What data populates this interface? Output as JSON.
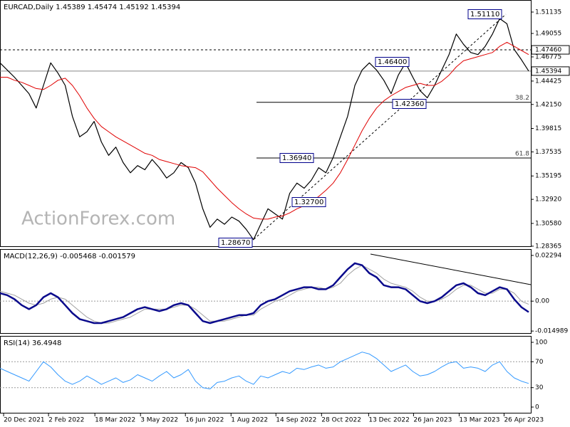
{
  "chart_data": [
    {
      "type": "line",
      "title": "EURCAD,Daily  1.45389 1.45474 1.45192 1.45394",
      "watermark": "ActionForex.com",
      "xlim": [
        0,
        73
      ],
      "ylim": [
        1.2836,
        1.5217
      ],
      "yticks": [
        1.51135,
        1.49055,
        1.46775,
        1.44425,
        {
          "value": 1.4215,
          "label": "1.42150"
        },
        1.39815,
        1.37535,
        1.35195,
        {
          "value": 1.3292,
          "label": "1.32920"
        },
        {
          "value": 1.3058,
          "label": "1.30580"
        },
        1.28365
      ],
      "levels": [
        {
          "value": 1.4746,
          "label": "1.47460",
          "style": "dashed"
        },
        {
          "value": 1.45394,
          "label": "1.45394",
          "style": "solid"
        }
      ],
      "fib": [
        {
          "value": 1.4236,
          "label": "38.2"
        },
        {
          "value": 1.3694,
          "label": "61.8"
        }
      ],
      "annotations": [
        {
          "value": 1.5111,
          "label": "1.51110"
        },
        {
          "value": 1.464,
          "label": "1.46400"
        },
        {
          "value": 1.4236,
          "label": "1.42360"
        },
        {
          "value": 1.3694,
          "label": "1.36940"
        },
        {
          "value": 1.327,
          "label": "1.32700"
        },
        {
          "value": 1.2867,
          "label": "1.28670"
        }
      ],
      "series": [
        {
          "name": "close",
          "color": "#000000",
          "width": 1.2,
          "values": [
            1.462,
            1.455,
            1.448,
            1.44,
            1.432,
            1.418,
            1.44,
            1.462,
            1.452,
            1.44,
            1.41,
            1.39,
            1.395,
            1.405,
            1.385,
            1.372,
            1.38,
            1.365,
            1.355,
            1.362,
            1.358,
            1.368,
            1.36,
            1.35,
            1.355,
            1.365,
            1.36,
            1.345,
            1.32,
            1.302,
            1.31,
            1.305,
            1.312,
            1.308,
            1.3,
            1.29,
            1.305,
            1.32,
            1.315,
            1.31,
            1.335,
            1.345,
            1.34,
            1.348,
            1.36,
            1.355,
            1.37,
            1.39,
            1.41,
            1.44,
            1.455,
            1.462,
            1.455,
            1.445,
            1.432,
            1.45,
            1.462,
            1.448,
            1.435,
            1.428,
            1.44,
            1.455,
            1.47,
            1.49,
            1.48,
            1.472,
            1.47,
            1.478,
            1.49,
            1.505,
            1.5,
            1.475,
            1.465,
            1.454
          ]
        },
        {
          "name": "ma",
          "color": "#e00000",
          "width": 1,
          "values": [
            1.448,
            1.448,
            1.445,
            1.443,
            1.44,
            1.437,
            1.436,
            1.44,
            1.445,
            1.447,
            1.44,
            1.43,
            1.418,
            1.408,
            1.4,
            1.395,
            1.39,
            1.386,
            1.382,
            1.378,
            1.374,
            1.372,
            1.368,
            1.366,
            1.364,
            1.362,
            1.361,
            1.36,
            1.356,
            1.348,
            1.34,
            1.333,
            1.326,
            1.32,
            1.315,
            1.311,
            1.31,
            1.31,
            1.312,
            1.313,
            1.316,
            1.32,
            1.323,
            1.327,
            1.332,
            1.338,
            1.345,
            1.355,
            1.368,
            1.382,
            1.396,
            1.408,
            1.418,
            1.425,
            1.43,
            1.434,
            1.438,
            1.44,
            1.442,
            1.44,
            1.44,
            1.444,
            1.45,
            1.458,
            1.464,
            1.466,
            1.468,
            1.47,
            1.472,
            1.478,
            1.482,
            1.478,
            1.474,
            1.47
          ]
        }
      ]
    },
    {
      "type": "line",
      "title": "MACD(12,26,9) -0.005468 -0.001579",
      "xlim": [
        0,
        73
      ],
      "ylim": [
        -0.016,
        0.0254
      ],
      "yticks": [
        0.02294,
        {
          "value": 0,
          "label": "0.00"
        },
        -0.014989
      ],
      "dotted_levels": [
        0
      ],
      "series": [
        {
          "name": "signal",
          "color": "#a0a0a0",
          "width": 1,
          "values": [
            0.005,
            0.004,
            0.003,
            0.001,
            -0.001,
            -0.002,
            -0.001,
            0.001,
            0.002,
            0.001,
            -0.002,
            -0.005,
            -0.008,
            -0.01,
            -0.011,
            -0.011,
            -0.01,
            -0.009,
            -0.008,
            -0.006,
            -0.004,
            -0.004,
            -0.004,
            -0.004,
            -0.003,
            -0.002,
            -0.002,
            -0.004,
            -0.007,
            -0.01,
            -0.01,
            -0.01,
            -0.009,
            -0.008,
            -0.007,
            -0.007,
            -0.004,
            -0.002,
            0.0,
            0.001,
            0.003,
            0.005,
            0.006,
            0.007,
            0.007,
            0.006,
            0.007,
            0.009,
            0.013,
            0.016,
            0.018,
            0.016,
            0.014,
            0.011,
            0.009,
            0.008,
            0.007,
            0.005,
            0.002,
            0.0,
            0.0,
            0.001,
            0.003,
            0.006,
            0.008,
            0.008,
            0.006,
            0.004,
            0.004,
            0.006,
            0.006,
            0.004,
            0.0,
            -0.001579
          ]
        },
        {
          "name": "macd",
          "color": "#0a0a8c",
          "width": 2.5,
          "values": [
            0.004,
            0.003,
            0.001,
            -0.002,
            -0.004,
            -0.002,
            0.002,
            0.004,
            0.002,
            -0.002,
            -0.006,
            -0.009,
            -0.01,
            -0.011,
            -0.011,
            -0.01,
            -0.009,
            -0.008,
            -0.006,
            -0.004,
            -0.003,
            -0.004,
            -0.005,
            -0.004,
            -0.002,
            -0.001,
            -0.002,
            -0.006,
            -0.01,
            -0.011,
            -0.01,
            -0.009,
            -0.008,
            -0.007,
            -0.007,
            -0.006,
            -0.002,
            0.0,
            0.001,
            0.003,
            0.005,
            0.006,
            0.007,
            0.007,
            0.006,
            0.006,
            0.008,
            0.012,
            0.016,
            0.019,
            0.018,
            0.014,
            0.012,
            0.008,
            0.007,
            0.007,
            0.006,
            0.003,
            0.0,
            -0.001,
            0.0,
            0.002,
            0.005,
            0.008,
            0.009,
            0.007,
            0.004,
            0.003,
            0.005,
            0.007,
            0.006,
            0.001,
            -0.003,
            -0.005468
          ]
        }
      ]
    },
    {
      "type": "line",
      "title": "RSI(14) 36.4948",
      "xlim": [
        0,
        73
      ],
      "ylim": [
        -8.8,
        107.7
      ],
      "yticks": [
        100,
        70,
        30,
        0
      ],
      "dotted_levels": [
        70,
        30
      ],
      "xticks": [
        {
          "value": 0.5,
          "label": "20 Dec 2021"
        },
        {
          "value": 6.7,
          "label": "2 Feb 2022"
        },
        {
          "value": 13.1,
          "label": "18 Mar 2022"
        },
        {
          "value": 19.4,
          "label": "3 May 2022"
        },
        {
          "value": 25.6,
          "label": "16 Jun 2022"
        },
        {
          "value": 31.9,
          "label": "1 Aug 2022"
        },
        {
          "value": 38.1,
          "label": "14 Sep 2022"
        },
        {
          "value": 44.4,
          "label": "28 Oct 2022"
        },
        {
          "value": 50.9,
          "label": "13 Dec 2022"
        },
        {
          "value": 57.1,
          "label": "26 Jan 2023"
        },
        {
          "value": 63.4,
          "label": "13 Mar 2023"
        },
        {
          "value": 69.6,
          "label": "26 Apr 2023"
        }
      ],
      "series": [
        {
          "name": "rsi",
          "color": "#3399ff",
          "width": 1,
          "values": [
            60,
            55,
            50,
            45,
            40,
            55,
            70,
            62,
            50,
            40,
            35,
            40,
            48,
            42,
            35,
            40,
            45,
            38,
            42,
            50,
            45,
            40,
            48,
            55,
            45,
            50,
            58,
            40,
            30,
            28,
            38,
            40,
            45,
            48,
            40,
            35,
            48,
            45,
            50,
            55,
            52,
            60,
            58,
            62,
            65,
            60,
            62,
            70,
            75,
            80,
            85,
            82,
            75,
            65,
            55,
            60,
            65,
            55,
            48,
            50,
            55,
            62,
            68,
            70,
            60,
            62,
            60,
            55,
            65,
            70,
            55,
            45,
            40,
            36.4948
          ]
        }
      ]
    }
  ]
}
